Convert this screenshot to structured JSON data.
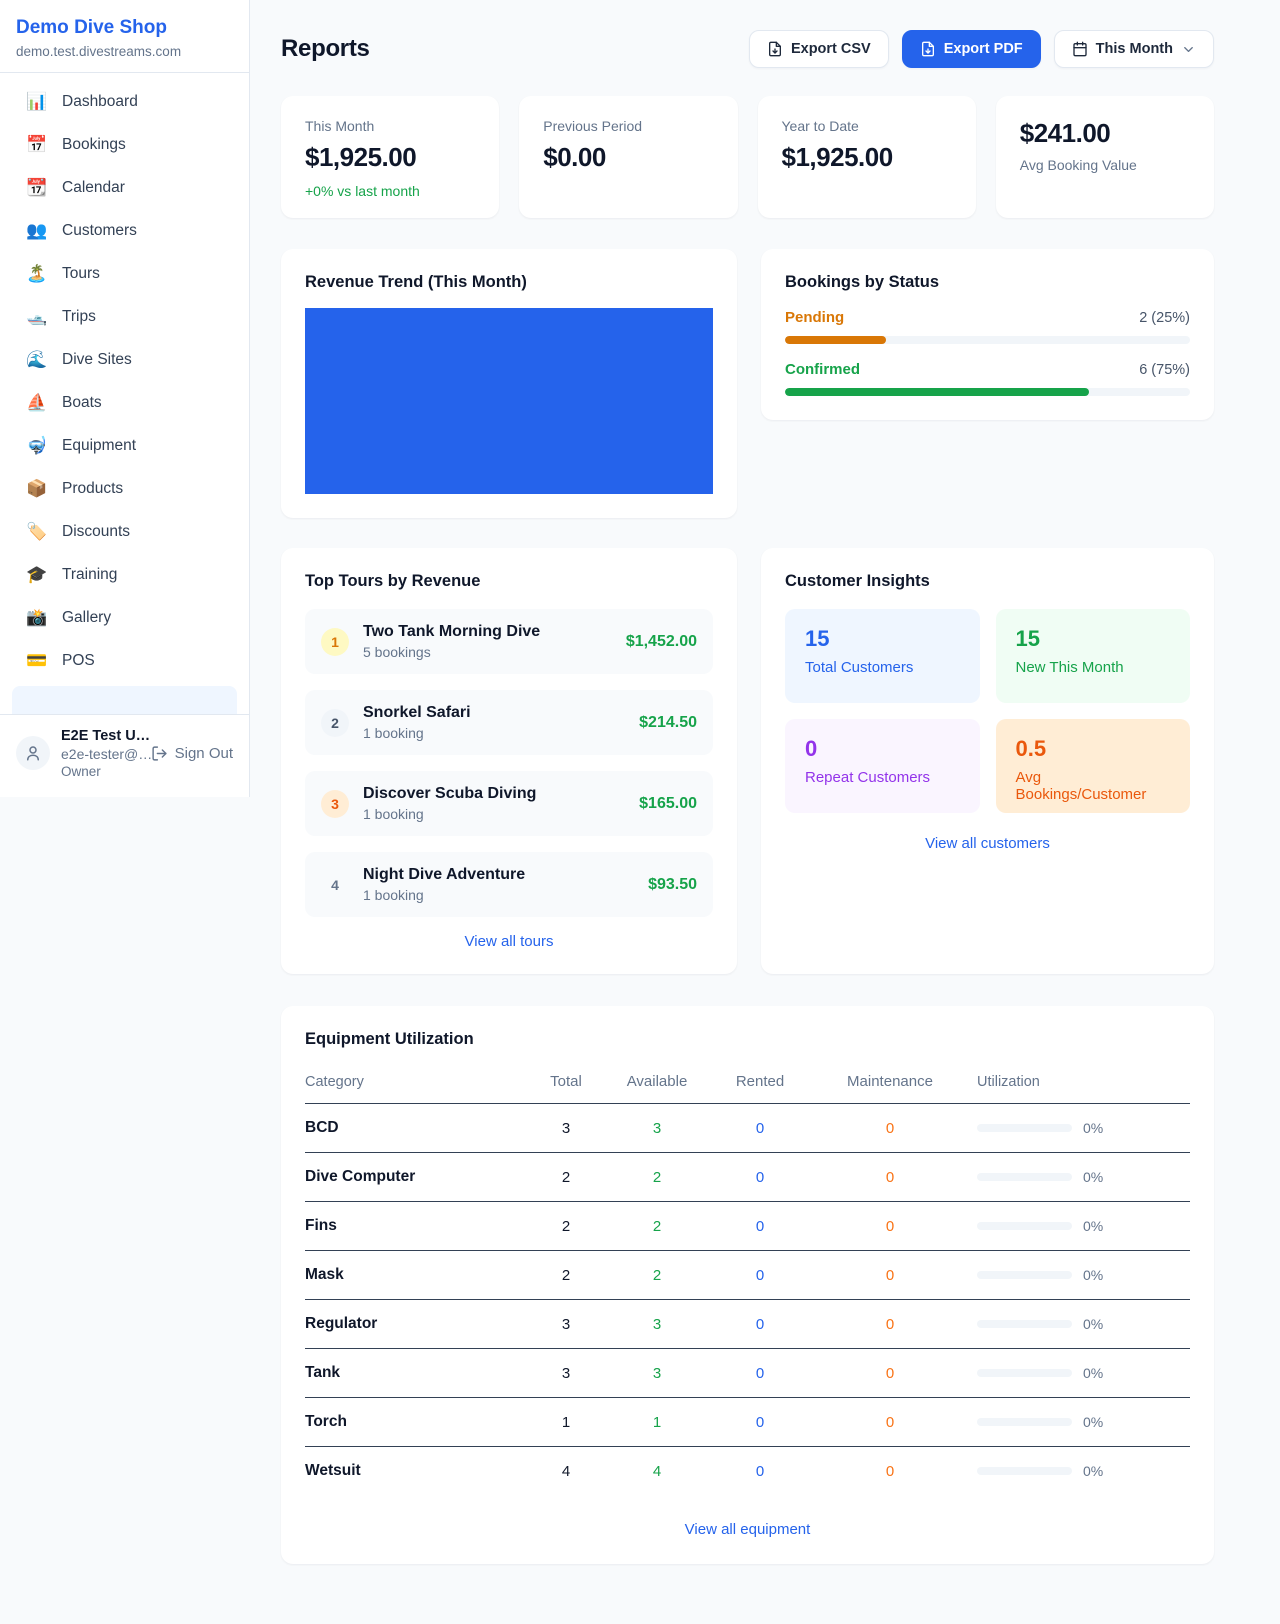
{
  "sidebar": {
    "brand": "Demo Dive Shop",
    "domain": "demo.test.divestreams.com",
    "items": [
      {
        "icon": "bar-chart",
        "glyph": "📊",
        "label": "Dashboard"
      },
      {
        "icon": "calendar-date",
        "glyph": "📅",
        "label": "Bookings"
      },
      {
        "icon": "calendar-pad",
        "glyph": "📆",
        "label": "Calendar"
      },
      {
        "icon": "people",
        "glyph": "👥",
        "label": "Customers"
      },
      {
        "icon": "island",
        "glyph": "🏝️",
        "label": "Tours"
      },
      {
        "icon": "motorboat",
        "glyph": "🛥️",
        "label": "Trips"
      },
      {
        "icon": "wave",
        "glyph": "🌊",
        "label": "Dive Sites"
      },
      {
        "icon": "sailboat",
        "glyph": "⛵",
        "label": "Boats"
      },
      {
        "icon": "diving-mask",
        "glyph": "🤿",
        "label": "Equipment"
      },
      {
        "icon": "package",
        "glyph": "📦",
        "label": "Products"
      },
      {
        "icon": "label-tag",
        "glyph": "🏷️",
        "label": "Discounts"
      },
      {
        "icon": "graduation-cap",
        "glyph": "🎓",
        "label": "Training"
      },
      {
        "icon": "camera-flash",
        "glyph": "📸",
        "label": "Gallery"
      },
      {
        "icon": "credit-card",
        "glyph": "💳",
        "label": "POS"
      }
    ],
    "user": {
      "name": "E2E Test U…",
      "email": "e2e-tester@…",
      "role": "Owner",
      "sign_out_label": "Sign Out"
    }
  },
  "header": {
    "title": "Reports",
    "export_csv_label": "Export CSV",
    "export_pdf_label": "Export PDF",
    "period_label": "This Month"
  },
  "stats": {
    "this_month": {
      "label": "This Month",
      "value": "$1,925.00",
      "delta": "+0% vs last month"
    },
    "previous_period": {
      "label": "Previous Period",
      "value": "$0.00"
    },
    "year_to_date": {
      "label": "Year to Date",
      "value": "$1,925.00"
    },
    "avg_booking": {
      "value": "$241.00",
      "label": "Avg Booking Value"
    }
  },
  "revenue_trend": {
    "title": "Revenue Trend (This Month)"
  },
  "bookings_by_status": {
    "title": "Bookings by Status",
    "rows": [
      {
        "label": "Pending",
        "count_text": "2 (25%)",
        "percent": 25
      },
      {
        "label": "Confirmed",
        "count_text": "6 (75%)",
        "percent": 75
      }
    ]
  },
  "chart_data": [
    {
      "type": "bar",
      "title": "Revenue Trend (This Month)",
      "series": [
        {
          "name": "Revenue",
          "values": [
            1925
          ]
        }
      ],
      "note": "single solid bar filling the entire plot area, no axes or tick labels visible",
      "bar_color": "#2563eb"
    },
    {
      "type": "bar",
      "orientation": "horizontal",
      "title": "Bookings by Status",
      "categories": [
        "Pending",
        "Confirmed"
      ],
      "values": [
        2,
        6
      ],
      "percents": [
        25,
        75
      ],
      "colors": [
        "#d97706",
        "#16a34a"
      ]
    }
  ],
  "top_tours": {
    "title": "Top Tours by Revenue",
    "view_all": "View all tours",
    "rows": [
      {
        "rank": "1",
        "name": "Two Tank Morning Dive",
        "bookings": "5 bookings",
        "amount": "$1,452.00"
      },
      {
        "rank": "2",
        "name": "Snorkel Safari",
        "bookings": "1 booking",
        "amount": "$214.50"
      },
      {
        "rank": "3",
        "name": "Discover Scuba Diving",
        "bookings": "1 booking",
        "amount": "$165.00"
      },
      {
        "rank": "4",
        "name": "Night Dive Adventure",
        "bookings": "1 booking",
        "amount": "$93.50"
      }
    ]
  },
  "customer_insights": {
    "title": "Customer Insights",
    "view_all": "View all customers",
    "tiles": [
      {
        "value": "15",
        "label": "Total Customers"
      },
      {
        "value": "15",
        "label": "New This Month"
      },
      {
        "value": "0",
        "label": "Repeat Customers"
      },
      {
        "value": "0.5",
        "label": "Avg Bookings/Customer"
      }
    ]
  },
  "equipment": {
    "title": "Equipment Utilization",
    "view_all": "View all equipment",
    "columns": [
      "Category",
      "Total",
      "Available",
      "Rented",
      "Maintenance",
      "Utilization"
    ],
    "rows": [
      {
        "category": "BCD",
        "total": "3",
        "available": "3",
        "rented": "0",
        "maintenance": "0",
        "utilization_pct": 0,
        "utilization": "0%"
      },
      {
        "category": "Dive Computer",
        "total": "2",
        "available": "2",
        "rented": "0",
        "maintenance": "0",
        "utilization_pct": 0,
        "utilization": "0%"
      },
      {
        "category": "Fins",
        "total": "2",
        "available": "2",
        "rented": "0",
        "maintenance": "0",
        "utilization_pct": 0,
        "utilization": "0%"
      },
      {
        "category": "Mask",
        "total": "2",
        "available": "2",
        "rented": "0",
        "maintenance": "0",
        "utilization_pct": 0,
        "utilization": "0%"
      },
      {
        "category": "Regulator",
        "total": "3",
        "available": "3",
        "rented": "0",
        "maintenance": "0",
        "utilization_pct": 0,
        "utilization": "0%"
      },
      {
        "category": "Tank",
        "total": "3",
        "available": "3",
        "rented": "0",
        "maintenance": "0",
        "utilization_pct": 0,
        "utilization": "0%"
      },
      {
        "category": "Torch",
        "total": "1",
        "available": "1",
        "rented": "0",
        "maintenance": "0",
        "utilization_pct": 0,
        "utilization": "0%"
      },
      {
        "category": "Wetsuit",
        "total": "4",
        "available": "4",
        "rented": "0",
        "maintenance": "0",
        "utilization_pct": 0,
        "utilization": "0%"
      }
    ]
  },
  "colors": {
    "accent_blue": "#2563eb",
    "green": "#16a34a",
    "pending_orange": "#d97706",
    "maintenance_orange": "#f97316",
    "purple": "#9333ea",
    "page_bg": "#f8fafc"
  }
}
